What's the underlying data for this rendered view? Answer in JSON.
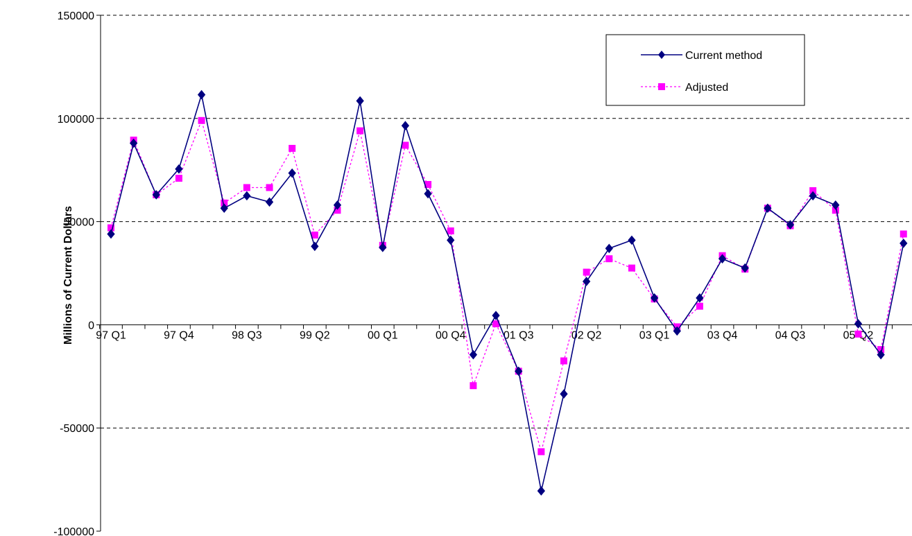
{
  "chart_data": {
    "type": "line",
    "title": "",
    "xlabel": "",
    "ylabel": "Millions of Current Dollars",
    "ylim": [
      -100000,
      150000
    ],
    "yticks": [
      -100000,
      -50000,
      0,
      50000,
      100000,
      150000
    ],
    "ytick_labels": [
      "-100000",
      "-50000",
      "0",
      "50000",
      "100000",
      "150000"
    ],
    "grid": "horizontal dashed",
    "legend_position": "top-right",
    "x": [
      "97 Q1",
      "97 Q2",
      "97 Q3",
      "97 Q4",
      "98 Q1",
      "98 Q2",
      "98 Q3",
      "98 Q4",
      "99 Q1",
      "99 Q2",
      "99 Q3",
      "99 Q4",
      "00 Q1",
      "00 Q2",
      "00 Q3",
      "00 Q4",
      "01 Q1",
      "01 Q2",
      "01 Q3",
      "01 Q4",
      "02 Q1",
      "02 Q2",
      "02 Q3",
      "02 Q4",
      "03 Q1",
      "03 Q2",
      "03 Q3",
      "03 Q4",
      "04 Q1",
      "04 Q2",
      "04 Q3",
      "04 Q4",
      "05 Q1",
      "05 Q2",
      "05 Q3",
      "05 Q4"
    ],
    "xtick_labels": [
      "97 Q1",
      "97 Q4",
      "98 Q3",
      "99 Q2",
      "00 Q1",
      "00 Q4",
      "01 Q3",
      "02 Q2",
      "03 Q1",
      "03 Q4",
      "04 Q3",
      "05 Q2"
    ],
    "series": [
      {
        "name": "Current method",
        "color": "#000080",
        "marker": "diamond",
        "line": "solid",
        "values": [
          44000,
          88000,
          63000,
          75500,
          111500,
          56500,
          62500,
          59500,
          73500,
          38000,
          58000,
          108500,
          37500,
          96500,
          63500,
          41000,
          -14500,
          4500,
          -22500,
          -80500,
          -33500,
          21000,
          37000,
          41000,
          13000,
          -3000,
          13000,
          32000,
          27500,
          56500,
          48500,
          62500,
          58000,
          500,
          -14500,
          39500
        ]
      },
      {
        "name": "Adjusted",
        "color": "#ff00ff",
        "marker": "square",
        "line": "dashed",
        "values": [
          47000,
          89500,
          63000,
          71000,
          99000,
          59000,
          66500,
          66500,
          85500,
          43500,
          55500,
          94000,
          38500,
          87000,
          68000,
          45500,
          -29500,
          500,
          -22500,
          -61500,
          -17500,
          25500,
          32000,
          27500,
          12500,
          -1000,
          9000,
          33500,
          27000,
          56500,
          48000,
          65000,
          55500,
          -4500,
          -12000,
          44000
        ]
      }
    ]
  }
}
